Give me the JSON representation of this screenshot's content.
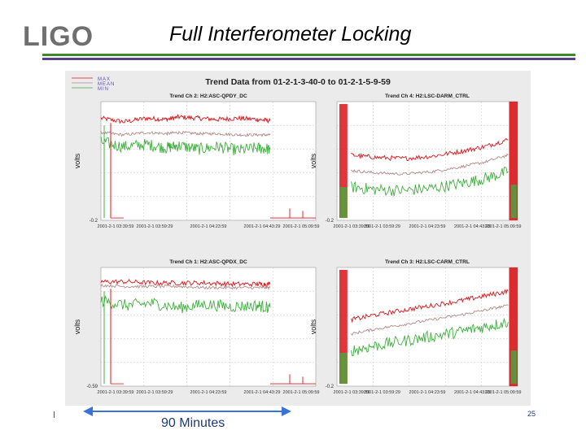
{
  "slide": {
    "logo": "LIGO",
    "title": "Full Interferometer Locking",
    "span_label": "90 Minutes",
    "page_number": "25"
  },
  "colors": {
    "max": "#d8151b",
    "mean": "#b58a88",
    "min": "#3fb03f",
    "legend_text": "#5a50b0",
    "arrow": "#3a72d8"
  },
  "chart_data": [
    {
      "type": "line",
      "panel": "top-left",
      "figure_title": "Trend Data from 01-2-1-3-40-0 to 01-2-1-5-9-59",
      "title": "Trend Ch 2: H2:ASC-QPDY_DC",
      "ylabel": "volts",
      "ytick_bottom": "-0.2",
      "legend": [
        "MAX",
        "MEAN",
        "MIN"
      ],
      "xticks": [
        "2001-2-1 03:39:59",
        "2001-2-1 03:59:29",
        "2001-2-1 04:23:59",
        "2001-2-1 04:43:29",
        "2001-2-1 05:09:59"
      ],
      "series": [
        {
          "name": "MAX",
          "x": [
            0,
            0.35,
            0.7,
            1.0,
            1.2,
            1.5,
            1.8,
            2.1,
            2.4,
            2.6
          ],
          "y": [
            0.86,
            0.83,
            0.86,
            0.85,
            0.87,
            0.86,
            0.85,
            0.86,
            0.85,
            0.84
          ]
        },
        {
          "name": "MEAN",
          "x": [
            0,
            0.35,
            0.7,
            1.0,
            1.2,
            1.5,
            1.8,
            2.1,
            2.4,
            2.6
          ],
          "y": [
            0.74,
            0.72,
            0.74,
            0.73,
            0.74,
            0.73,
            0.73,
            0.72,
            0.72,
            0.72
          ]
        },
        {
          "name": "MIN",
          "x": [
            0,
            0.35,
            0.7,
            1.0,
            1.2,
            1.5,
            1.8,
            2.1,
            2.4,
            2.6
          ],
          "y": [
            0.66,
            0.62,
            0.64,
            0.61,
            0.63,
            0.6,
            0.62,
            0.59,
            0.61,
            0.6
          ]
        }
      ]
    },
    {
      "type": "line",
      "panel": "top-right",
      "title": "Trend Ch 4: H2:LSC-DARM_CTRL",
      "ylabel": "volts",
      "ytick_bottom": "-0.2",
      "xticks": [
        "2001-2-1 03:39:59",
        "2001-2-1 03:59:29",
        "2001-2-1 04:23:59",
        "2001-2-1 04:43:29",
        "2001-2-1 05:09:59"
      ],
      "series": [
        {
          "name": "MAX",
          "x": [
            0.3,
            0.8,
            1.4,
            2.0,
            2.6,
            3.1,
            3.6
          ],
          "y": [
            0.55,
            0.53,
            0.52,
            0.54,
            0.58,
            0.62,
            0.68
          ]
        },
        {
          "name": "MEAN",
          "x": [
            0.3,
            0.8,
            1.4,
            2.0,
            2.6,
            3.1,
            3.6
          ],
          "y": [
            0.42,
            0.4,
            0.39,
            0.41,
            0.45,
            0.49,
            0.55
          ]
        },
        {
          "name": "MIN",
          "x": [
            0.3,
            0.8,
            1.4,
            2.0,
            2.6,
            3.1,
            3.6
          ],
          "y": [
            0.28,
            0.26,
            0.25,
            0.27,
            0.31,
            0.35,
            0.41
          ]
        }
      ]
    },
    {
      "type": "line",
      "panel": "bottom-left",
      "title": "Trend Ch 1: H2:ASC-QPDX_DC",
      "ylabel": "volts",
      "ytick_bottom": "-0.59",
      "xticks": [
        "2001-2-1 03:39:59",
        "2001-2-1 03:59:29",
        "2001-2-1 04:23:59",
        "2001-2-1 04:43:29",
        "2001-2-1 05:09:59"
      ],
      "series": [
        {
          "name": "MAX",
          "x": [
            0,
            0.4,
            0.8,
            1.2,
            1.6,
            2.0,
            2.4,
            2.6
          ],
          "y": [
            0.88,
            0.88,
            0.87,
            0.87,
            0.87,
            0.86,
            0.86,
            0.86
          ]
        },
        {
          "name": "MEAN",
          "x": [
            0,
            0.4,
            0.8,
            1.2,
            1.6,
            2.0,
            2.4,
            2.6
          ],
          "y": [
            0.85,
            0.84,
            0.84,
            0.84,
            0.83,
            0.83,
            0.83,
            0.83
          ]
        },
        {
          "name": "MIN",
          "x": [
            0,
            0.4,
            0.8,
            1.2,
            1.6,
            2.0,
            2.4,
            2.6
          ],
          "y": [
            0.72,
            0.68,
            0.7,
            0.66,
            0.69,
            0.67,
            0.68,
            0.66
          ]
        }
      ]
    },
    {
      "type": "line",
      "panel": "bottom-right",
      "title": "Trend Ch 3: H2:LSC-CARM_CTRL",
      "ylabel": "volts",
      "ytick_bottom": "-0.2",
      "xticks": [
        "2001-2-1 03:39:59",
        "2001-2-1 03:59:29",
        "2001-2-1 04:23:59",
        "2001-2-1 04:43:29",
        "2001-2-1 05:09:59"
      ],
      "series": [
        {
          "name": "MAX",
          "x": [
            0.3,
            0.8,
            1.4,
            2.0,
            2.6,
            3.1,
            3.6
          ],
          "y": [
            0.56,
            0.6,
            0.64,
            0.68,
            0.72,
            0.76,
            0.8
          ]
        },
        {
          "name": "MEAN",
          "x": [
            0.3,
            0.8,
            1.4,
            2.0,
            2.6,
            3.1,
            3.6
          ],
          "y": [
            0.44,
            0.48,
            0.52,
            0.56,
            0.6,
            0.64,
            0.68
          ]
        },
        {
          "name": "MIN",
          "x": [
            0.3,
            0.8,
            1.4,
            2.0,
            2.6,
            3.1,
            3.6
          ],
          "y": [
            0.3,
            0.34,
            0.38,
            0.42,
            0.46,
            0.5,
            0.54
          ]
        }
      ]
    }
  ]
}
